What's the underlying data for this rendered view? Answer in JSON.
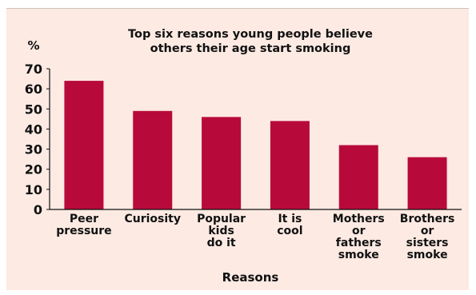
{
  "chart_data": {
    "type": "bar",
    "title_lines": [
      "Top six reasons young people believe",
      "others their age start smoking"
    ],
    "ylabel": "%",
    "xlabel": "Reasons",
    "ylim": [
      0,
      70
    ],
    "yticks": [
      0,
      10,
      20,
      30,
      40,
      50,
      60,
      70
    ],
    "categories": [
      [
        "Peer",
        "pressure"
      ],
      [
        "Curiosity"
      ],
      [
        "Popular",
        "kids",
        "do it"
      ],
      [
        "It is",
        "cool"
      ],
      [
        "Mothers",
        "or",
        "fathers",
        "smoke"
      ],
      [
        "Brothers",
        "or",
        "sisters",
        "smoke"
      ]
    ],
    "values": [
      64,
      49,
      46,
      44,
      32,
      26
    ],
    "bar_color": "#b80a3a",
    "background_color": "#fceae3",
    "grid": false,
    "legend": "none"
  }
}
